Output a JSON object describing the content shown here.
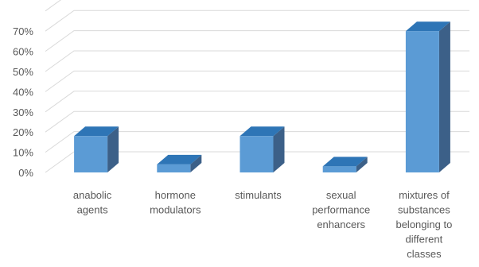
{
  "chart_data": {
    "type": "bar",
    "style": "3d-column",
    "categories": [
      [
        "anabolic",
        "agents"
      ],
      [
        "hormone",
        "modulators"
      ],
      [
        "stimulants"
      ],
      [
        "sexual",
        "performance",
        "enhancers"
      ],
      [
        "mixtures of",
        "substances",
        "belonging to",
        "different",
        "classes"
      ]
    ],
    "values": [
      18,
      4,
      18,
      3,
      70
    ],
    "ylim": [
      0,
      70
    ],
    "yticks": [
      "0%",
      "10%",
      "20%",
      "30%",
      "40%",
      "50%",
      "60%",
      "70%"
    ],
    "title": "",
    "xlabel": "",
    "ylabel": "",
    "grid": true,
    "legend": "none",
    "colors": {
      "bar_front": "#5b9bd5",
      "bar_top": "#2e75b6",
      "bar_side": "#3c6088",
      "grid": "#d9d9d9",
      "text": "#595959"
    }
  }
}
